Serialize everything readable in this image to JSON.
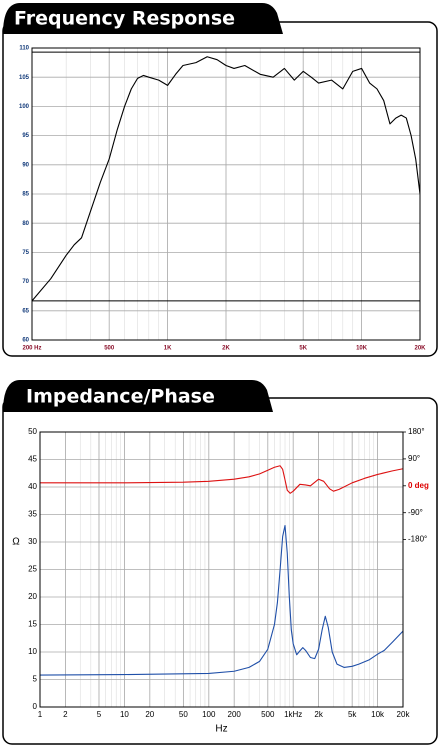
{
  "chart_data": [
    {
      "type": "line",
      "title": "Frequency Response",
      "xscale": "log",
      "grid": true,
      "xlim": [
        200,
        20000
      ],
      "xticks": [
        {
          "value": 200,
          "label": "200 Hz"
        },
        {
          "value": 500,
          "label": "500"
        },
        {
          "value": 1000,
          "label": "1K"
        },
        {
          "value": 2000,
          "label": "2K"
        },
        {
          "value": 5000,
          "label": "5K"
        },
        {
          "value": 10000,
          "label": "10K"
        },
        {
          "value": 20000,
          "label": "20K"
        }
      ],
      "ylim": [
        60,
        110
      ],
      "yticks": [
        60,
        65,
        70,
        75,
        80,
        85,
        90,
        95,
        100,
        105,
        110
      ],
      "hlines": [
        66.7,
        109.3
      ],
      "series": [
        {
          "color": "#000000",
          "x": [
            200,
            250,
            300,
            330,
            360,
            400,
            450,
            500,
            550,
            600,
            650,
            700,
            750,
            800,
            900,
            1000,
            1100,
            1200,
            1400,
            1600,
            1800,
            2000,
            2200,
            2500,
            3000,
            3500,
            4000,
            4500,
            5000,
            5500,
            6000,
            7000,
            8000,
            9000,
            10000,
            11000,
            12000,
            13000,
            14000,
            15000,
            16000,
            17000,
            18000,
            19000,
            20000
          ],
          "values": [
            66.7,
            70.5,
            74.5,
            76.3,
            77.5,
            82,
            87,
            91,
            96,
            100,
            103,
            104.8,
            105.3,
            105,
            104.5,
            103.6,
            105.5,
            107,
            107.5,
            108.5,
            108,
            107,
            106.5,
            107,
            105.5,
            105,
            106.5,
            104.5,
            106,
            105,
            104,
            104.5,
            103,
            106,
            106.5,
            104,
            103,
            101,
            97,
            98,
            98.5,
            98,
            95,
            91,
            85
          ]
        }
      ]
    },
    {
      "type": "line",
      "title": "Impedance/Phase",
      "xscale": "log",
      "grid": true,
      "xlabel": "Hz",
      "ylabel": "Ω",
      "xlim": [
        1,
        20000
      ],
      "xticks": [
        1,
        2,
        5,
        10,
        20,
        50,
        100,
        200,
        500,
        {
          "value": 1000,
          "label": "1kHz"
        },
        {
          "value": 2000,
          "label": "2k"
        },
        {
          "value": 5000,
          "label": "5k"
        },
        {
          "value": 10000,
          "label": "10k"
        },
        {
          "value": 20000,
          "label": "20k"
        }
      ],
      "ylim": [
        0,
        50
      ],
      "yticks": [
        0,
        5,
        10,
        15,
        20,
        25,
        30,
        35,
        40,
        45,
        50
      ],
      "y2lim": [
        -740,
        180
      ],
      "y2ticks": [
        {
          "value": 180,
          "label": "180°"
        },
        {
          "value": 90,
          "label": "90°"
        },
        {
          "value": 0,
          "label": "0 deg",
          "color": "#dd0000"
        },
        {
          "value": -90,
          "label": "-90°"
        },
        {
          "value": -180,
          "label": "-180°"
        }
      ],
      "series": [
        {
          "color": "#1f4fa8",
          "x": [
            1,
            10,
            100,
            200,
            300,
            400,
            500,
            600,
            650,
            700,
            750,
            800,
            850,
            900,
            950,
            1000,
            1100,
            1200,
            1300,
            1400,
            1600,
            1800,
            2000,
            2200,
            2400,
            2600,
            2900,
            3300,
            4000,
            5000,
            6000,
            8000,
            10000,
            12000,
            15000,
            20000
          ],
          "values": [
            5.8,
            5.9,
            6.1,
            6.5,
            7.2,
            8.3,
            10.5,
            15,
            19,
            25,
            31,
            33,
            28,
            20,
            14,
            11.5,
            9.5,
            10.2,
            10.8,
            10.3,
            9,
            8.8,
            10.5,
            14,
            16.5,
            14.5,
            10,
            7.8,
            7.2,
            7.4,
            7.8,
            8.6,
            9.6,
            10.3,
            11.8,
            13.8
          ]
        },
        {
          "color": "#dd1111",
          "axis": "y2",
          "x": [
            1,
            10,
            50,
            100,
            200,
            300,
            400,
            500,
            600,
            700,
            750,
            800,
            850,
            920,
            1000,
            1200,
            1400,
            1600,
            2000,
            2300,
            2700,
            3000,
            3500,
            5000,
            7000,
            10000,
            15000,
            20000
          ],
          "values": [
            10,
            10,
            12,
            15,
            22,
            30,
            40,
            52,
            62,
            67,
            55,
            20,
            -15,
            -25,
            -18,
            5,
            3,
            0,
            22,
            15,
            -10,
            -18,
            -12,
            10,
            25,
            38,
            50,
            57
          ]
        }
      ]
    }
  ]
}
